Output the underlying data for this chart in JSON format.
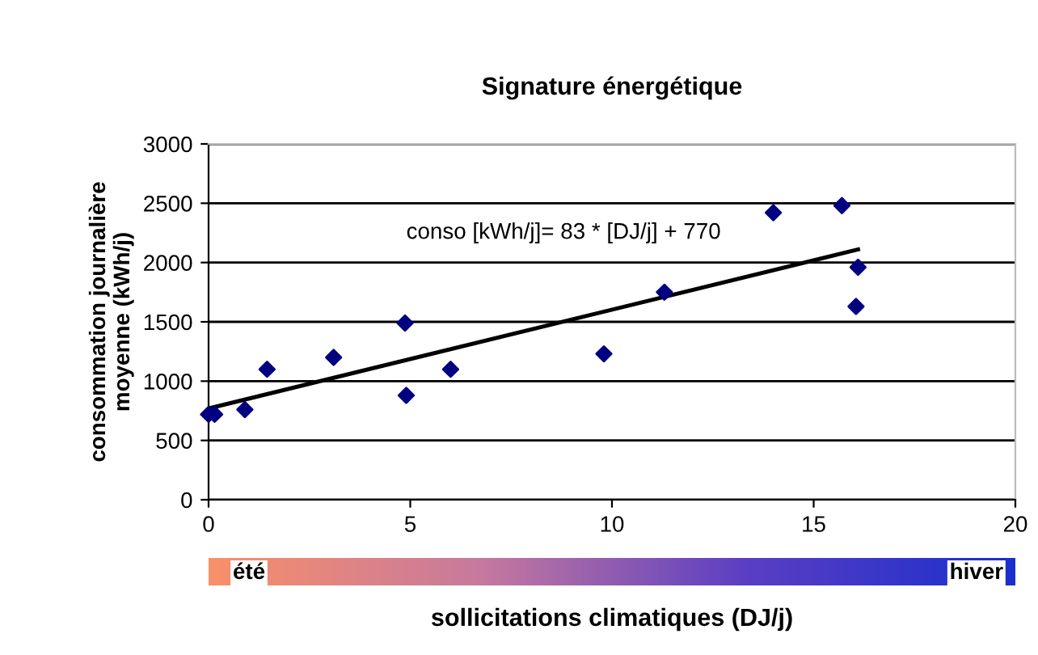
{
  "chart_data": {
    "type": "scatter",
    "title": "Signature énergétique",
    "xlabel": "sollicitations climatiques (DJ/j)",
    "ylabel": "consommation journalière\nmoyenne (kWh/j)",
    "series": [
      {
        "color": "#000080",
        "marker": "diamond",
        "x": [
          0,
          0.15,
          0.9,
          1.45,
          3.1,
          4.87,
          4.9,
          6.0,
          9.8,
          11.3,
          14.0,
          15.7,
          16.1,
          16.05
        ],
        "values": [
          720,
          720,
          760,
          1100,
          1200,
          1490,
          880,
          1100,
          1230,
          1750,
          2420,
          2480,
          1960,
          1630
        ]
      },
      {
        "type": "line",
        "color": "#000000",
        "marker": "none",
        "line_style": "solid",
        "x": [
          0,
          16.1
        ],
        "values": [
          770,
          2110
        ]
      }
    ],
    "annotations": [
      "conso [kWh/j]= 83 * [DJ/j] + 770",
      "été",
      "hiver"
    ],
    "xlim": [
      0,
      20
    ],
    "xticks": [
      0,
      5,
      10,
      15,
      20
    ],
    "ylim": [
      0,
      3000
    ],
    "yticks": [
      0,
      500,
      1000,
      1500,
      2000,
      2500,
      3000
    ],
    "grid": "y",
    "legend": false
  }
}
